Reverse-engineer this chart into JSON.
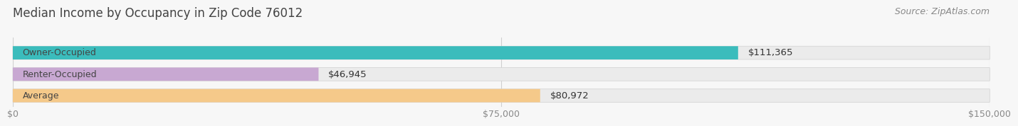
{
  "title": "Median Income by Occupancy in Zip Code 76012",
  "source": "Source: ZipAtlas.com",
  "categories": [
    "Owner-Occupied",
    "Renter-Occupied",
    "Average"
  ],
  "values": [
    111365,
    46945,
    80972
  ],
  "labels": [
    "$111,365",
    "$46,945",
    "$80,972"
  ],
  "bar_colors": [
    "#3bbcbc",
    "#c8a8d2",
    "#f5c98a"
  ],
  "bar_bg_color": "#ebebeb",
  "xlim": [
    0,
    150000
  ],
  "xtick_values": [
    0,
    75000,
    150000
  ],
  "xtick_labels": [
    "$0",
    "$75,000",
    "$150,000"
  ],
  "bar_height": 0.62,
  "title_fontsize": 12,
  "source_fontsize": 9,
  "label_fontsize": 9.5,
  "category_fontsize": 9,
  "tick_fontsize": 9,
  "title_color": "#444444",
  "source_color": "#888888",
  "label_color": "#333333",
  "category_color": "#444444",
  "tick_color": "#888888",
  "grid_color": "#d0d0d0",
  "background_color": "#f7f7f7"
}
